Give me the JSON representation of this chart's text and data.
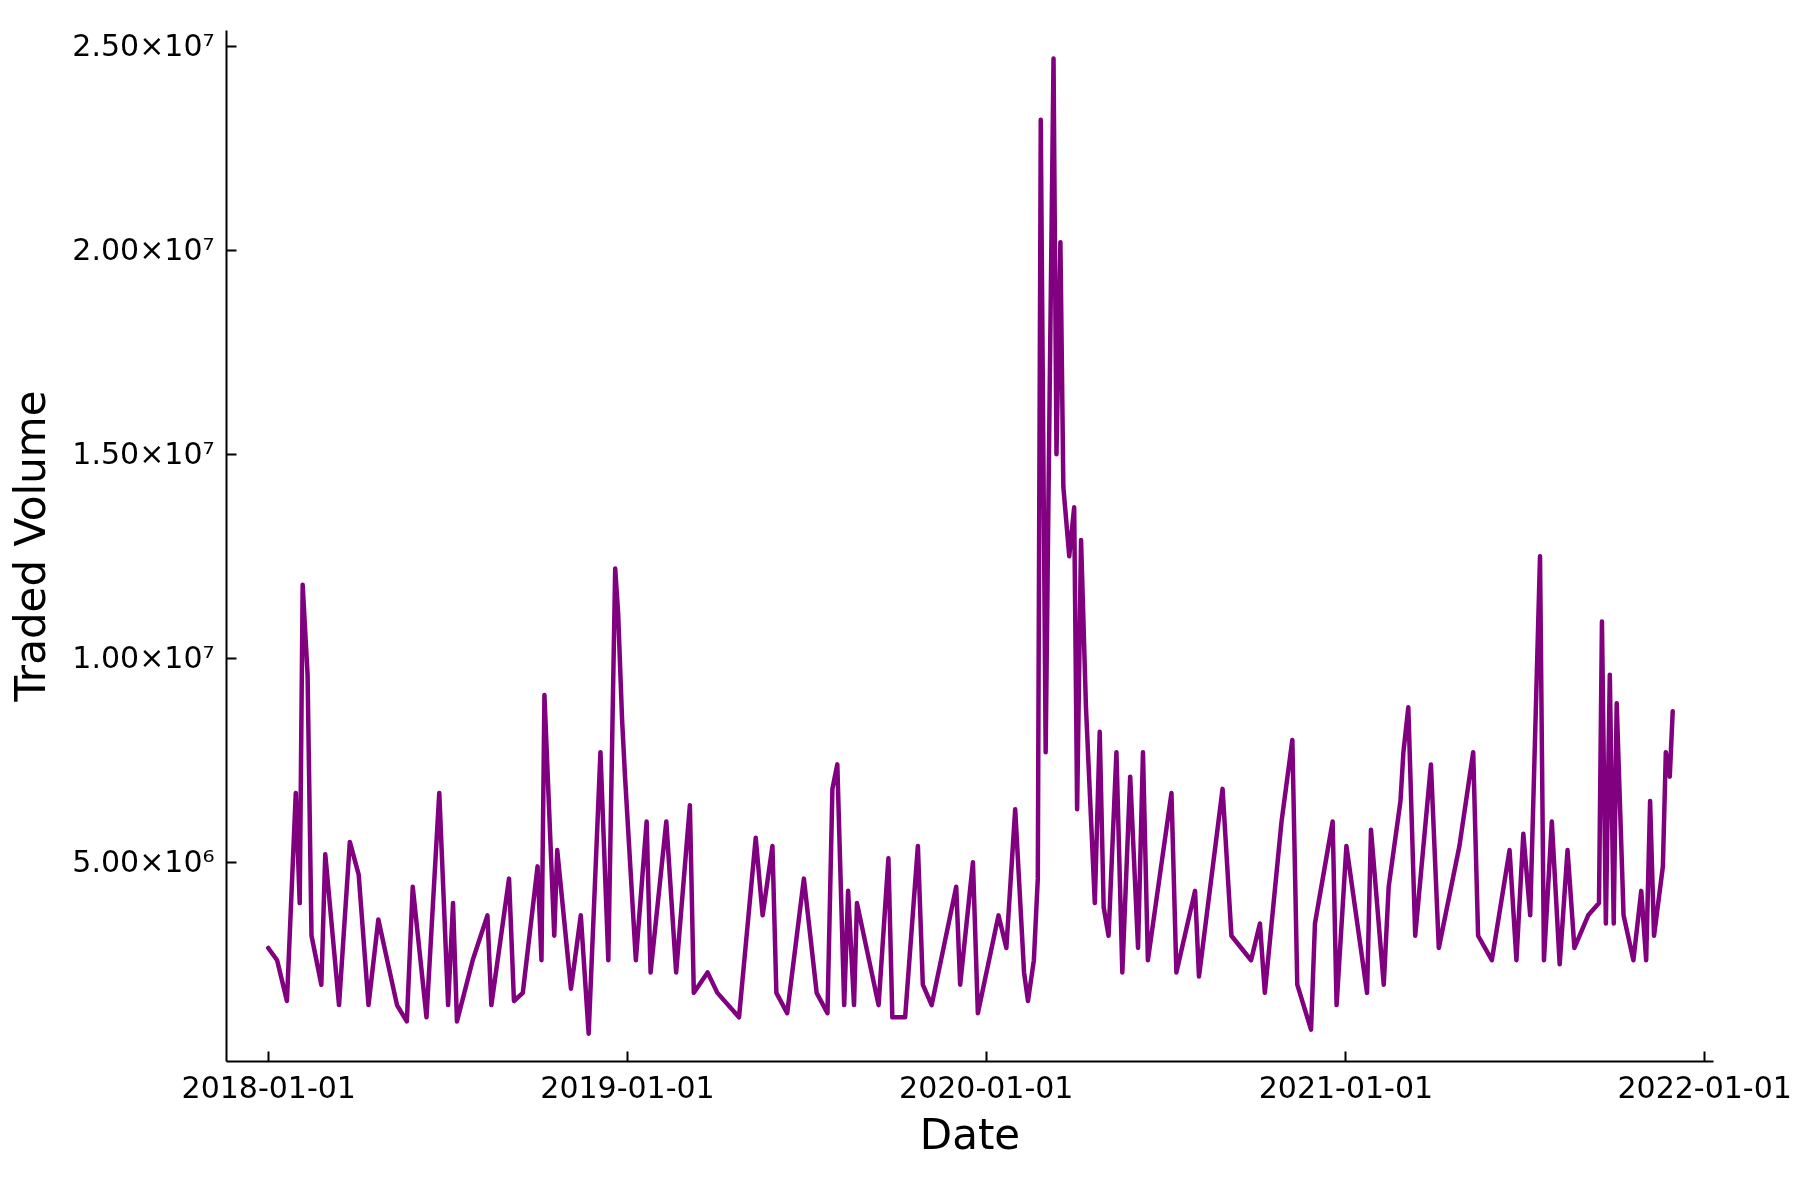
{
  "chart_data": {
    "type": "line",
    "xlabel": "Date",
    "ylabel": "Traded Volume",
    "x": [
      "2018-01-01",
      "2018-01-10",
      "2018-01-20",
      "2018-01-29",
      "2018-02-02",
      "2018-02-05",
      "2018-02-10",
      "2018-02-14",
      "2018-02-24",
      "2018-02-28",
      "2018-03-14",
      "2018-03-25",
      "2018-04-03",
      "2018-04-13",
      "2018-04-23",
      "2018-05-12",
      "2018-05-22",
      "2018-05-28",
      "2018-06-11",
      "2018-06-24",
      "2018-07-03",
      "2018-07-08",
      "2018-07-12",
      "2018-07-28",
      "2018-08-12",
      "2018-08-16",
      "2018-09-03",
      "2018-09-08",
      "2018-09-17",
      "2018-10-02",
      "2018-10-06",
      "2018-10-09",
      "2018-10-19",
      "2018-10-22",
      "2018-11-05",
      "2018-11-15",
      "2018-11-23",
      "2018-12-05",
      "2018-12-13",
      "2018-12-20",
      "2018-12-23",
      "2018-12-27",
      "2018-12-30",
      "2019-01-10",
      "2019-01-21",
      "2019-01-25",
      "2019-02-10",
      "2019-02-20",
      "2019-03-06",
      "2019-03-10",
      "2019-03-24",
      "2019-04-03",
      "2019-04-25",
      "2019-05-12",
      "2019-05-19",
      "2019-05-29",
      "2019-06-02",
      "2019-06-13",
      "2019-06-30",
      "2019-07-13",
      "2019-07-24",
      "2019-07-29",
      "2019-08-03",
      "2019-08-10",
      "2019-08-14",
      "2019-08-20",
      "2019-08-23",
      "2019-09-14",
      "2019-09-24",
      "2019-09-28",
      "2019-10-11",
      "2019-10-24",
      "2019-10-29",
      "2019-11-07",
      "2019-12-02",
      "2019-12-06",
      "2019-12-19",
      "2019-12-24",
      "2020-01-14",
      "2020-01-22",
      "2020-01-31",
      "2020-02-09",
      "2020-02-13",
      "2020-02-19",
      "2020-02-23",
      "2020-02-26",
      "2020-03-02",
      "2020-03-06",
      "2020-03-10",
      "2020-03-13",
      "2020-03-17",
      "2020-03-20",
      "2020-03-26",
      "2020-03-31",
      "2020-04-03",
      "2020-04-07",
      "2020-04-12",
      "2020-04-21",
      "2020-04-26",
      "2020-04-30",
      "2020-05-05",
      "2020-05-13",
      "2020-05-19",
      "2020-05-27",
      "2020-06-04",
      "2020-06-09",
      "2020-06-14",
      "2020-07-08",
      "2020-07-13",
      "2020-08-01",
      "2020-08-05",
      "2020-08-29",
      "2020-09-07",
      "2020-09-27",
      "2020-10-06",
      "2020-10-11",
      "2020-10-28",
      "2020-11-08",
      "2020-11-13",
      "2020-11-27",
      "2020-12-01",
      "2020-12-19",
      "2020-12-23",
      "2021-01-02",
      "2021-01-23",
      "2021-01-27",
      "2021-02-09",
      "2021-02-14",
      "2021-02-26",
      "2021-03-01",
      "2021-03-06",
      "2021-03-13",
      "2021-03-29",
      "2021-04-06",
      "2021-04-27",
      "2021-05-11",
      "2021-05-16",
      "2021-05-30",
      "2021-06-17",
      "2021-06-24",
      "2021-07-01",
      "2021-07-08",
      "2021-07-18",
      "2021-07-22",
      "2021-07-30",
      "2021-08-07",
      "2021-08-15",
      "2021-08-22",
      "2021-09-05",
      "2021-09-16",
      "2021-09-19",
      "2021-09-23",
      "2021-09-27",
      "2021-10-01",
      "2021-10-04",
      "2021-10-11",
      "2021-10-21",
      "2021-10-29",
      "2021-11-03",
      "2021-11-07",
      "2021-11-11",
      "2021-11-20",
      "2021-11-23",
      "2021-11-27",
      "2021-11-30"
    ],
    "series": [
      {
        "color": "#800080",
        "values": [
          2900000,
          2600000,
          1600000,
          6700000,
          4000000,
          11800000,
          9600000,
          3200000,
          2000000,
          5200000,
          1500000,
          5500000,
          4700000,
          1500000,
          3600000,
          1500000,
          1100000,
          4400000,
          1200000,
          6700000,
          1500000,
          4000000,
          1100000,
          2600000,
          3700000,
          1500000,
          4600000,
          1600000,
          1800000,
          4900000,
          2600000,
          9100000,
          3200000,
          5300000,
          1900000,
          3700000,
          800000,
          7700000,
          2600000,
          12200000,
          11100000,
          8500000,
          7100000,
          2600000,
          6000000,
          2300000,
          6000000,
          2300000,
          6400000,
          1800000,
          2300000,
          1800000,
          1200000,
          5600000,
          3700000,
          5400000,
          1800000,
          1300000,
          4600000,
          1800000,
          1300000,
          6800000,
          7400000,
          1500000,
          4300000,
          1500000,
          4000000,
          1500000,
          5100000,
          1200000,
          1200000,
          5400000,
          2000000,
          1500000,
          4400000,
          2000000,
          5000000,
          1300000,
          3700000,
          2900000,
          6300000,
          2300000,
          1600000,
          2600000,
          4600000,
          23200000,
          7700000,
          16400000,
          24700000,
          15000000,
          20200000,
          14200000,
          12500000,
          13700000,
          6300000,
          12900000,
          8800000,
          4000000,
          8200000,
          3900000,
          3200000,
          7700000,
          2300000,
          7100000,
          2900000,
          7700000,
          2600000,
          6700000,
          2300000,
          4300000,
          2200000,
          6800000,
          3200000,
          2600000,
          3500000,
          1800000,
          6000000,
          8000000,
          2000000,
          900000,
          3500000,
          6000000,
          1500000,
          5400000,
          1800000,
          5800000,
          2000000,
          4400000,
          6500000,
          7700000,
          8800000,
          3200000,
          7400000,
          2900000,
          5400000,
          7700000,
          3200000,
          2600000,
          5300000,
          2600000,
          5700000,
          3700000,
          12500000,
          2600000,
          6000000,
          2500000,
          5300000,
          2900000,
          3700000,
          4000000,
          10900000,
          3500000,
          9600000,
          3500000,
          8900000,
          3700000,
          2600000,
          4300000,
          2600000,
          6500000,
          3200000,
          4900000,
          7700000,
          7100000,
          8700000
        ]
      }
    ],
    "xlim": [
      "2017-11-19",
      "2022-01-10"
    ],
    "xticks": [
      "2018-01-01",
      "2019-01-01",
      "2020-01-01",
      "2021-01-01",
      "2022-01-01"
    ],
    "ylim": [
      130000,
      25400000
    ],
    "yticks": [
      {
        "value": 5000000,
        "label": "5.00×10⁶"
      },
      {
        "value": 10000000,
        "label": "1.00×10⁷"
      },
      {
        "value": 15000000,
        "label": "1.50×10⁷"
      },
      {
        "value": 20000000,
        "label": "2.00×10⁷"
      },
      {
        "value": 25000000,
        "label": "2.50×10⁷"
      }
    ]
  }
}
